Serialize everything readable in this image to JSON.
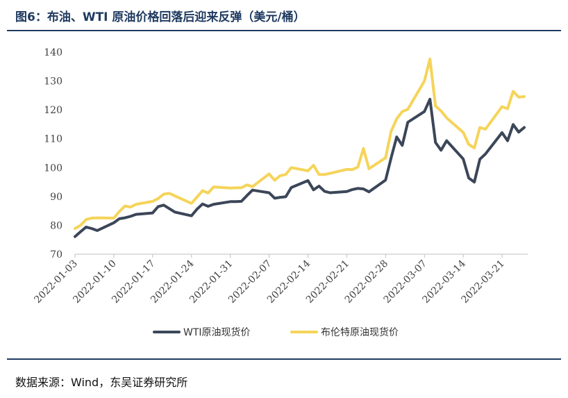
{
  "title": "图6：布油、WTI 原油价格回落后迎来反弹（美元/桶）",
  "source": "数据来源：Wind，东吴证券研究所",
  "colors": {
    "wti": "#3b4658",
    "brent": "#f5d45a",
    "rule": "#1f3a60"
  },
  "chart_data": {
    "type": "line",
    "title": "图6：布油、WTI 原油价格回落后迎来反弹（美元/桶）",
    "xlabel": "",
    "ylabel": "",
    "ylim": [
      70,
      140
    ],
    "yticks": [
      70,
      80,
      90,
      100,
      110,
      120,
      130,
      140
    ],
    "xtick_labels": [
      "2022-01-03",
      "2022-01-10",
      "2022-01-17",
      "2022-01-24",
      "2022-01-31",
      "2022-02-07",
      "2022-02-14",
      "2022-02-21",
      "2022-02-28",
      "2022-03-07",
      "2022-03-14",
      "2022-03-21"
    ],
    "grid": false,
    "legend_position": "bottom",
    "x": [
      "2022-01-03",
      "2022-01-04",
      "2022-01-05",
      "2022-01-06",
      "2022-01-07",
      "2022-01-10",
      "2022-01-11",
      "2022-01-12",
      "2022-01-13",
      "2022-01-14",
      "2022-01-17",
      "2022-01-18",
      "2022-01-19",
      "2022-01-20",
      "2022-01-21",
      "2022-01-24",
      "2022-01-25",
      "2022-01-26",
      "2022-01-27",
      "2022-01-28",
      "2022-01-31",
      "2022-02-01",
      "2022-02-02",
      "2022-02-03",
      "2022-02-04",
      "2022-02-07",
      "2022-02-08",
      "2022-02-09",
      "2022-02-10",
      "2022-02-11",
      "2022-02-14",
      "2022-02-15",
      "2022-02-16",
      "2022-02-17",
      "2022-02-18",
      "2022-02-21",
      "2022-02-22",
      "2022-02-23",
      "2022-02-24",
      "2022-02-25",
      "2022-02-28",
      "2022-03-01",
      "2022-03-02",
      "2022-03-03",
      "2022-03-04",
      "2022-03-07",
      "2022-03-08",
      "2022-03-09",
      "2022-03-10",
      "2022-03-11",
      "2022-03-14",
      "2022-03-15",
      "2022-03-16",
      "2022-03-17",
      "2022-03-18",
      "2022-03-21",
      "2022-03-22",
      "2022-03-23",
      "2022-03-24",
      "2022-03-25"
    ],
    "series": [
      {
        "name": "WTI原油现货价",
        "color": "#3b4658",
        "values": [
          76.1,
          77.8,
          79.4,
          78.9,
          78.2,
          80.9,
          82.3,
          82.6,
          83.1,
          83.8,
          84.3,
          86.5,
          87.0,
          85.8,
          84.6,
          83.3,
          85.6,
          87.4,
          86.6,
          87.3,
          88.2,
          88.2,
          88.3,
          90.3,
          92.2,
          91.3,
          89.4,
          89.7,
          89.9,
          93.1,
          95.5,
          92.3,
          93.6,
          91.8,
          91.3,
          91.7,
          92.4,
          92.8,
          92.6,
          91.6,
          95.7,
          103.4,
          110.6,
          107.7,
          115.7,
          119.4,
          123.7,
          108.7,
          106.0,
          109.3,
          103.0,
          96.4,
          95.0,
          102.9,
          104.7,
          112.1,
          109.3,
          114.9,
          112.3,
          113.9
        ]
      },
      {
        "name": "布伦特原油现货价",
        "color": "#f5d45a",
        "values": [
          78.9,
          80.0,
          82.0,
          82.5,
          82.6,
          82.5,
          84.8,
          86.7,
          86.3,
          87.3,
          88.3,
          89.3,
          90.8,
          91.1,
          90.2,
          87.6,
          89.8,
          92.0,
          91.2,
          93.3,
          92.9,
          93.0,
          93.0,
          94.0,
          93.4,
          97.8,
          95.6,
          97.2,
          97.6,
          100.0,
          98.9,
          100.8,
          97.6,
          97.6,
          98.0,
          99.4,
          99.3,
          100.2,
          106.6,
          99.6,
          103.4,
          112.6,
          116.9,
          119.4,
          120.2,
          130.0,
          137.6,
          121.3,
          119.6,
          117.2,
          112.2,
          108.0,
          106.8,
          113.9,
          113.3,
          121.1,
          120.4,
          126.4,
          124.4,
          124.6
        ]
      }
    ]
  }
}
